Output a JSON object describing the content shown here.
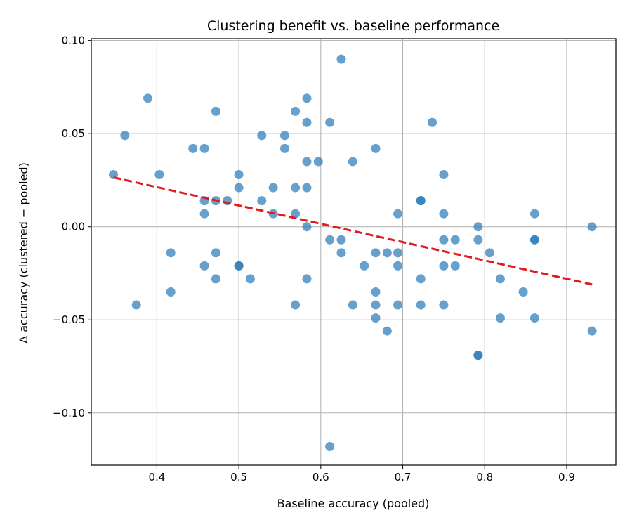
{
  "chart_data": {
    "type": "scatter",
    "title": "Clustering benefit vs. baseline performance",
    "xlabel": "Baseline accuracy (pooled)",
    "ylabel": "Δ accuracy (clustered − pooled)",
    "xlim": [
      0.32,
      0.96
    ],
    "ylim": [
      -0.128,
      0.101
    ],
    "x_ticks": [
      0.4,
      0.5,
      0.6,
      0.7,
      0.8,
      0.9
    ],
    "x_tick_labels": [
      "0.4",
      "0.5",
      "0.6",
      "0.7",
      "0.8",
      "0.9"
    ],
    "y_ticks": [
      0.1,
      0.05,
      0.0,
      -0.05,
      -0.1
    ],
    "y_tick_labels": [
      "0.10",
      "0.05",
      "0.00",
      "−0.05",
      "−0.10"
    ],
    "grid": true,
    "point_color": "#2b7bba",
    "trend_color": "#e31a1c",
    "points": [
      [
        0.347,
        0.028
      ],
      [
        0.361,
        0.049
      ],
      [
        0.375,
        -0.042
      ],
      [
        0.389,
        0.069
      ],
      [
        0.403,
        0.028
      ],
      [
        0.417,
        -0.014
      ],
      [
        0.417,
        -0.035
      ],
      [
        0.444,
        0.042
      ],
      [
        0.458,
        0.042
      ],
      [
        0.458,
        0.014
      ],
      [
        0.458,
        0.007
      ],
      [
        0.458,
        -0.021
      ],
      [
        0.472,
        0.062
      ],
      [
        0.472,
        0.014
      ],
      [
        0.472,
        -0.014
      ],
      [
        0.472,
        -0.028
      ],
      [
        0.486,
        0.014
      ],
      [
        0.5,
        0.028
      ],
      [
        0.5,
        0.021
      ],
      [
        0.5,
        -0.021
      ],
      [
        0.5,
        -0.021
      ],
      [
        0.514,
        -0.028
      ],
      [
        0.528,
        0.049
      ],
      [
        0.528,
        0.014
      ],
      [
        0.542,
        0.021
      ],
      [
        0.542,
        0.007
      ],
      [
        0.556,
        0.049
      ],
      [
        0.556,
        0.042
      ],
      [
        0.569,
        0.062
      ],
      [
        0.569,
        0.021
      ],
      [
        0.569,
        0.007
      ],
      [
        0.569,
        -0.042
      ],
      [
        0.583,
        0.069
      ],
      [
        0.583,
        0.056
      ],
      [
        0.583,
        0.035
      ],
      [
        0.583,
        0.021
      ],
      [
        0.583,
        0.0
      ],
      [
        0.583,
        -0.028
      ],
      [
        0.597,
        0.035
      ],
      [
        0.611,
        0.056
      ],
      [
        0.611,
        -0.007
      ],
      [
        0.611,
        -0.118
      ],
      [
        0.625,
        0.09
      ],
      [
        0.625,
        -0.007
      ],
      [
        0.625,
        -0.014
      ],
      [
        0.639,
        0.035
      ],
      [
        0.639,
        -0.042
      ],
      [
        0.653,
        -0.021
      ],
      [
        0.667,
        0.042
      ],
      [
        0.667,
        -0.014
      ],
      [
        0.667,
        -0.035
      ],
      [
        0.667,
        -0.042
      ],
      [
        0.667,
        -0.049
      ],
      [
        0.681,
        -0.014
      ],
      [
        0.681,
        -0.056
      ],
      [
        0.694,
        0.007
      ],
      [
        0.694,
        -0.014
      ],
      [
        0.694,
        -0.021
      ],
      [
        0.694,
        -0.042
      ],
      [
        0.722,
        0.014
      ],
      [
        0.722,
        0.014
      ],
      [
        0.722,
        -0.028
      ],
      [
        0.722,
        -0.042
      ],
      [
        0.736,
        0.056
      ],
      [
        0.75,
        0.028
      ],
      [
        0.75,
        0.007
      ],
      [
        0.75,
        -0.007
      ],
      [
        0.75,
        -0.021
      ],
      [
        0.75,
        -0.042
      ],
      [
        0.764,
        -0.007
      ],
      [
        0.764,
        -0.021
      ],
      [
        0.792,
        0.0
      ],
      [
        0.792,
        -0.007
      ],
      [
        0.792,
        -0.069
      ],
      [
        0.792,
        -0.069
      ],
      [
        0.806,
        -0.014
      ],
      [
        0.819,
        -0.028
      ],
      [
        0.819,
        -0.049
      ],
      [
        0.847,
        -0.035
      ],
      [
        0.861,
        0.007
      ],
      [
        0.861,
        -0.007
      ],
      [
        0.861,
        -0.007
      ],
      [
        0.861,
        -0.049
      ],
      [
        0.931,
        0.0
      ],
      [
        0.931,
        -0.056
      ]
    ],
    "trend_line": {
      "x": [
        0.347,
        0.931
      ],
      "y": [
        0.0265,
        -0.031
      ]
    }
  }
}
